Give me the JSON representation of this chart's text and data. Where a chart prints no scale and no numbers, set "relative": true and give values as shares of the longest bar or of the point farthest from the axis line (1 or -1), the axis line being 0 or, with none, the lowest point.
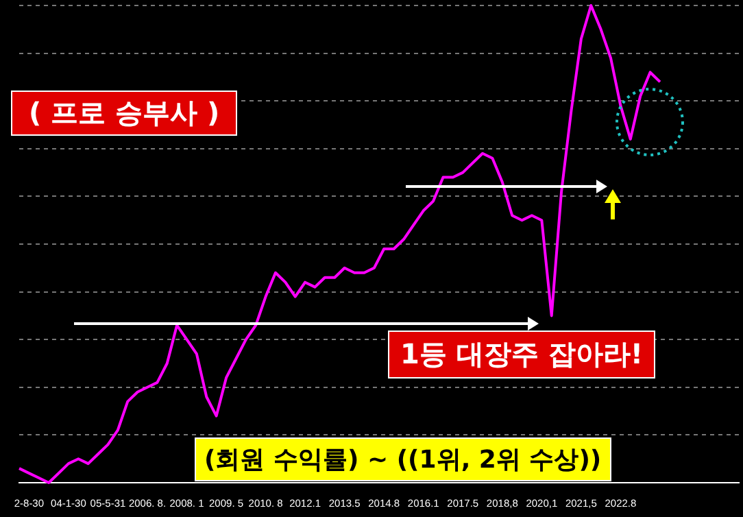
{
  "chart_data": {
    "type": "line",
    "relative": true,
    "grid": "y",
    "legend": false,
    "marker": "none",
    "categories": [
      null,
      "2-8-30",
      null,
      null,
      null,
      "04-1-30",
      null,
      null,
      null,
      "05-5-31",
      null,
      null,
      null,
      "2006. 8.",
      null,
      null,
      null,
      "2008. 1",
      null,
      null,
      null,
      "2009. 5",
      null,
      null,
      null,
      "2010. 8",
      null,
      null,
      null,
      "2012.1",
      null,
      null,
      null,
      "2013.5",
      null,
      null,
      null,
      "2014.8",
      null,
      null,
      null,
      "2016.1",
      null,
      null,
      null,
      "2017.5",
      null,
      null,
      null,
      "2018,8",
      null,
      null,
      null,
      "2020,1",
      null,
      null,
      null,
      "2021,5",
      null,
      null,
      null,
      "2022.8",
      null,
      null,
      null,
      null,
      null,
      null,
      null,
      null,
      null,
      null,
      null,
      null
    ],
    "series": [
      {
        "color": "#ff00ff",
        "values": [
          0.03,
          0.02,
          0.01,
          0,
          0.02,
          0.04,
          0.05,
          0.04,
          0.06,
          0.08,
          0.11,
          0.17,
          0.19,
          0.2,
          0.21,
          0.25,
          0.33,
          0.3,
          0.27,
          0.18,
          0.14,
          0.22,
          0.26,
          0.3,
          0.33,
          0.39,
          0.44,
          0.42,
          0.39,
          0.42,
          0.41,
          0.43,
          0.43,
          0.45,
          0.44,
          0.44,
          0.45,
          0.49,
          0.49,
          0.51,
          0.54,
          0.57,
          0.59,
          0.64,
          0.64,
          0.65,
          0.67,
          0.69,
          0.68,
          0.63,
          0.56,
          0.55,
          0.56,
          0.55,
          0.35,
          0.61,
          0.78,
          0.93,
          1,
          0.95,
          0.89,
          0.79,
          0.72,
          0.81,
          0.86,
          0.84,
          null,
          null,
          null,
          null,
          null,
          null,
          null,
          null
        ]
      }
    ],
    "annotations": [
      "( 프로 승부사 )",
      "1등 대장주 잡아라!",
      "(회원 수익률) ~ ((1위, 2위 수상))"
    ]
  }
}
